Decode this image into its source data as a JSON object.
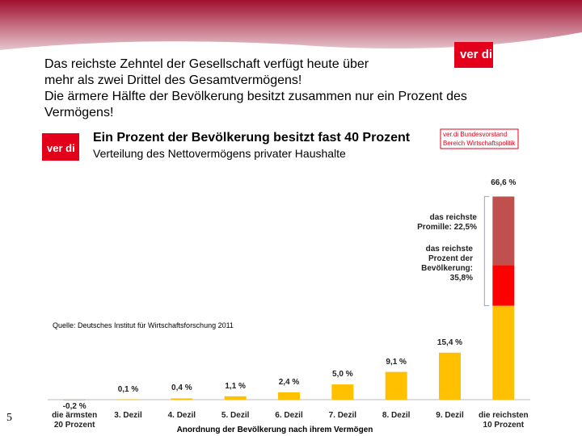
{
  "slide": {
    "heading": [
      "Das reichste Zehntel der Gesellschaft verfügt heute über",
      "mehr als zwei Drittel des Gesamtvermögens!",
      "Die ärmere Hälfte der Bevölkerung besitzt zusammen nur ein Prozent des",
      "Vermögens!"
    ],
    "logo": "ver di",
    "page_number": "5"
  },
  "chart_data": {
    "type": "bar",
    "stacked": true,
    "title": "Ein Prozent der Bevölkerung besitzt fast 40 Prozent",
    "subtitle": "Verteilung des Nettovermögens privater Haushalte",
    "logo": "ver di",
    "publisher": "ver.di Bundesvorstand\nBereich Wirtschaftspolitik",
    "source": "Quelle: Deutsches Institut für Wirtschaftsforschung 2011",
    "x_label": "Anordnung der Bevölkerung  nach ihrem Vermögen",
    "categories": [
      "die ärmsten\n20 Prozent",
      "3. Dezil",
      "4. Dezil",
      "5. Dezil",
      "6. Dezil",
      "7. Dezil",
      "8. Dezil",
      "9. Dezil",
      "die reichsten\n10 Prozent"
    ],
    "series": [
      {
        "color": "#ffc000",
        "values": [
          -0.2,
          0.1,
          0.4,
          1.1,
          2.4,
          5.0,
          9.1,
          15.4,
          30.8
        ],
        "value_labels": [
          "-0,2 %",
          "0,1 %",
          "0,4 %",
          "1,1 %",
          "2,4 %",
          "5,0 %",
          "9,1 %",
          "15,4 %",
          null
        ]
      },
      {
        "color": "#ff0000",
        "values": [
          null,
          null,
          null,
          null,
          null,
          null,
          null,
          null,
          13.3
        ]
      },
      {
        "color": "#c0504d",
        "values": [
          null,
          null,
          null,
          null,
          null,
          null,
          null,
          null,
          22.5
        ]
      }
    ],
    "annotations": [
      {
        "text": "66,6 %",
        "value": 66.6
      },
      {
        "text": "das reichste\nPromille: 22,5%",
        "value": 22.5
      },
      {
        "text": "das reichste\nProzent der\nBevölkerung:\n35,8%",
        "value": 35.8
      }
    ],
    "ylim": [
      -3,
      72
    ]
  }
}
